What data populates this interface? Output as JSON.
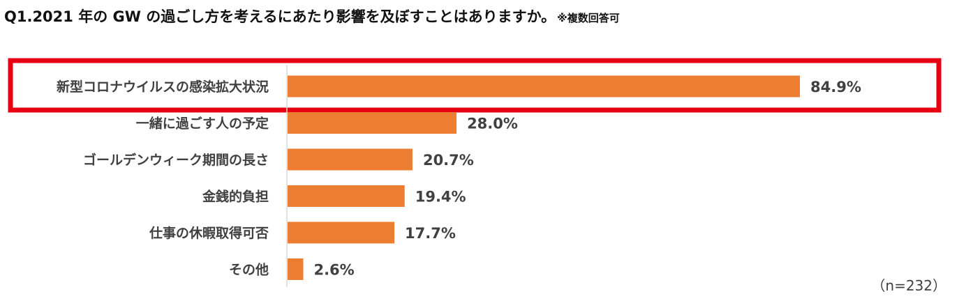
{
  "title": "Q1.2021 年の GW の過ごし方を考えるにあたり影響を及ぼすことはありますか。",
  "title_note": "※複数回答可",
  "sample_note": "（n=232）",
  "colors": {
    "bar": "#ED7D31",
    "highlight_border": "#E60012",
    "axis": "#D9D9D9",
    "text": "#404040"
  },
  "chart_data": {
    "type": "bar",
    "orientation": "horizontal",
    "title": "Q1.2021 年の GW の過ごし方を考えるにあたり影響を及ぼすことはありますか。",
    "categories": [
      "新型コロナウイルスの感染拡大状況",
      "一緒に過ごす人の予定",
      "ゴールデンウィーク期間の長さ",
      "金銭的負担",
      "仕事の休暇取得可否",
      "その他"
    ],
    "values": [
      84.9,
      28.0,
      20.7,
      19.4,
      17.7,
      2.6
    ],
    "value_labels": [
      "84.9%",
      "28.0%",
      "20.7%",
      "19.4%",
      "17.7%",
      "2.6%"
    ],
    "unit": "%",
    "highlighted_category": "新型コロナウイルスの感染拡大状況",
    "grid": false,
    "legend": "none"
  }
}
